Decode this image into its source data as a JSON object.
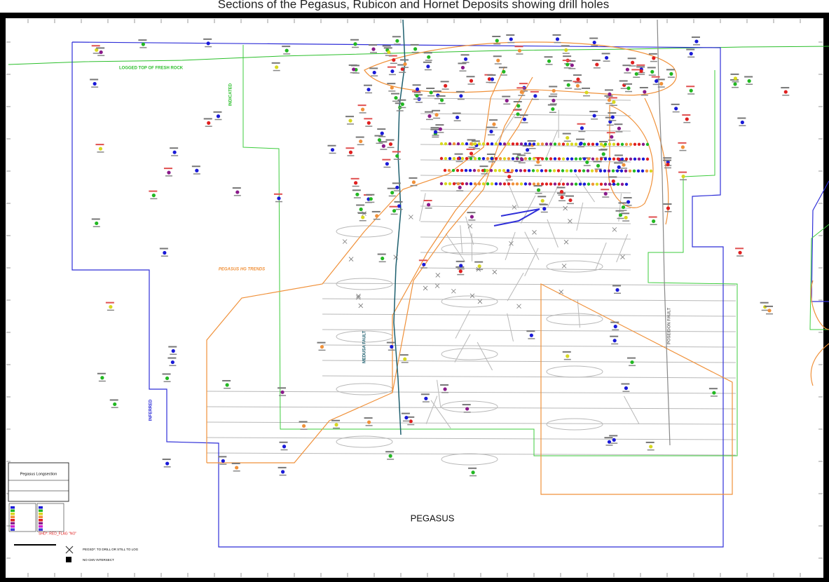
{
  "title": "Sections of the Pegasus, Rubicon and Hornet Deposits showing drill holes",
  "labels": {
    "fresh_rock": "LOGGED TOP OF FRESH ROCK",
    "indicated": "INDICATED",
    "inferred": "INFERRED",
    "hg_trends": "PEGASUS HG TRENDS",
    "medusa_fault": "MEDUSA FAULT",
    "poseidon_fault": "POSEIDON FAULT",
    "deposit": "PEGASUS"
  },
  "legend": {
    "title": "Pegasus Longsection",
    "pegsd": "PEGSD*: TO DRILL OR STILL TO LOG",
    "no_cmv": "NO CMV INTERSECT",
    "shd": "SHD*: RED_FLAG \"NO\""
  }
}
